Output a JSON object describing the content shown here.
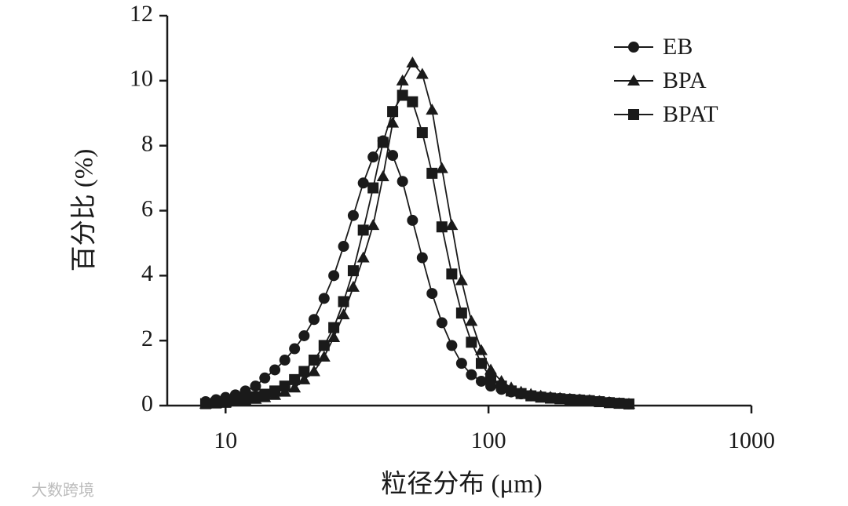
{
  "chart_data": {
    "type": "line",
    "x_scale": "log",
    "xlabel": "粒径分布 (μm)",
    "ylabel": "百分比 (%)",
    "xlim": [
      6,
      1000
    ],
    "xticks": [
      10,
      100,
      1000
    ],
    "ylim": [
      0,
      12
    ],
    "yticks": [
      0,
      2,
      4,
      6,
      8,
      10,
      12
    ],
    "grid": false,
    "legend_position": "upper right",
    "x": [
      8.4,
      9.2,
      10,
      10.9,
      11.9,
      13,
      14.1,
      15.4,
      16.8,
      18.3,
      19.9,
      21.7,
      23.7,
      25.8,
      28.1,
      30.6,
      33.4,
      36.4,
      39.7,
      43.2,
      47.1,
      51.4,
      56,
      61,
      66.5,
      72.5,
      79,
      86.1,
      93.9,
      102,
      112,
      122,
      133,
      145,
      158,
      172,
      187,
      204,
      222,
      242,
      264,
      288,
      314,
      342
    ],
    "series": [
      {
        "name": "EB",
        "color": "#1a1a1a",
        "marker": "circle",
        "values": [
          0.12,
          0.18,
          0.25,
          0.33,
          0.45,
          0.6,
          0.85,
          1.1,
          1.4,
          1.75,
          2.15,
          2.65,
          3.3,
          4.0,
          4.9,
          5.85,
          6.85,
          7.65,
          8.15,
          7.7,
          6.9,
          5.7,
          4.55,
          3.45,
          2.55,
          1.85,
          1.3,
          0.95,
          0.75,
          0.6,
          0.5,
          0.42,
          0.36,
          0.3,
          0.27,
          0.24,
          0.22,
          0.2,
          0.18,
          0.16,
          0.13,
          0.1,
          0.07,
          0.05
        ]
      },
      {
        "name": "BPA",
        "color": "#1a1a1a",
        "marker": "triangle",
        "values": [
          0.05,
          0.07,
          0.09,
          0.12,
          0.15,
          0.2,
          0.25,
          0.32,
          0.42,
          0.55,
          0.8,
          1.05,
          1.5,
          2.1,
          2.8,
          3.65,
          4.55,
          5.55,
          7.05,
          8.7,
          10.0,
          10.55,
          10.2,
          9.1,
          7.3,
          5.55,
          3.85,
          2.6,
          1.7,
          1.1,
          0.75,
          0.55,
          0.42,
          0.35,
          0.3,
          0.26,
          0.23,
          0.2,
          0.18,
          0.16,
          0.13,
          0.1,
          0.07,
          0.05
        ]
      },
      {
        "name": "BPAT",
        "color": "#1a1a1a",
        "marker": "square",
        "values": [
          0.06,
          0.08,
          0.1,
          0.15,
          0.2,
          0.27,
          0.35,
          0.45,
          0.6,
          0.8,
          1.05,
          1.4,
          1.85,
          2.4,
          3.2,
          4.15,
          5.4,
          6.7,
          8.1,
          9.05,
          9.55,
          9.35,
          8.4,
          7.15,
          5.5,
          4.05,
          2.85,
          1.95,
          1.3,
          0.85,
          0.6,
          0.45,
          0.37,
          0.3,
          0.26,
          0.23,
          0.21,
          0.19,
          0.17,
          0.15,
          0.12,
          0.09,
          0.07,
          0.05
        ]
      }
    ]
  },
  "watermark": "大数跨境"
}
